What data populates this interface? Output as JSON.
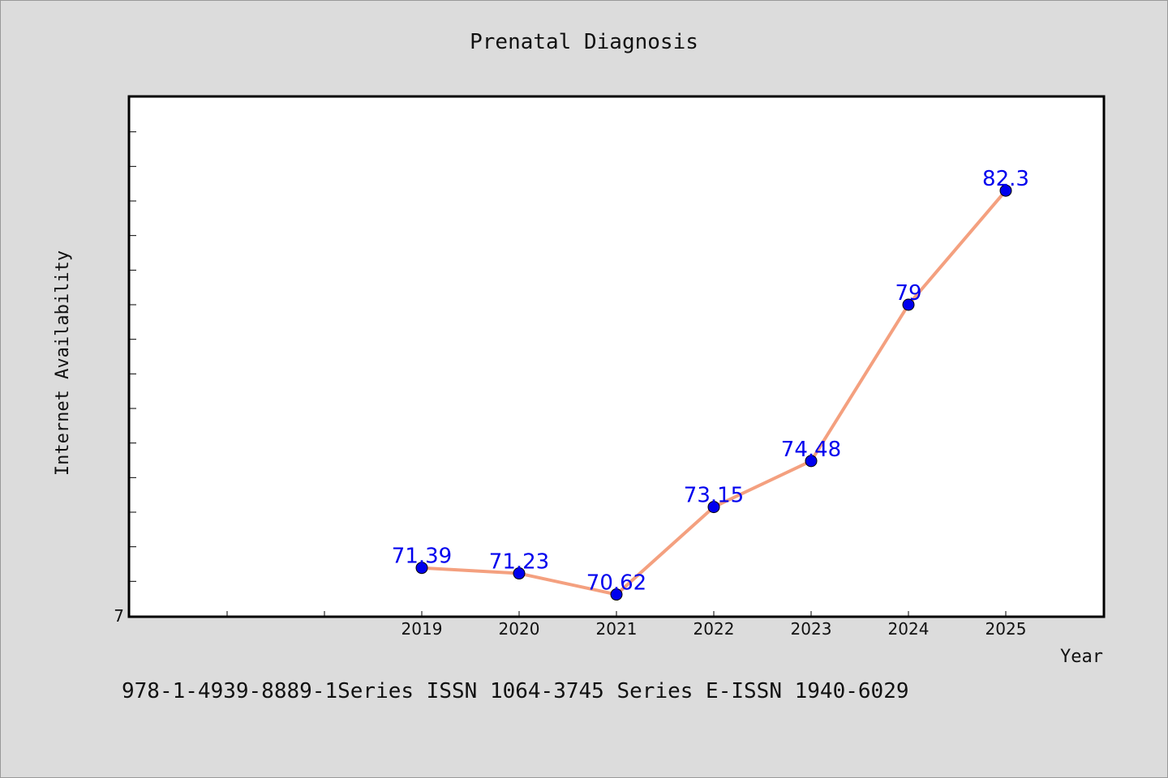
{
  "chart_data": {
    "type": "line",
    "title": "Prenatal Diagnosis",
    "xlabel": "Year",
    "ylabel": "Internet Availability",
    "ytick_label": "7",
    "x": [
      2019,
      2020,
      2021,
      2022,
      2023,
      2024,
      2025
    ],
    "series": [
      {
        "values": [
          71.39,
          71.23,
          70.62,
          73.15,
          74.48,
          79,
          82.3
        ],
        "labels": [
          "71.39",
          "71.23",
          "70.62",
          "73.15",
          "74.48",
          "79",
          "82.3"
        ]
      }
    ],
    "xlim": [
      2016,
      2026
    ],
    "ylim": [
      70.0,
      85.0
    ],
    "grid": false,
    "line_color": "#f4a07f",
    "marker_color": "#0000ee",
    "label_color": "#0000ee"
  },
  "footer": "978-1-4939-8889-1Series ISSN 1064-3745 Series E-ISSN 1940-6029"
}
